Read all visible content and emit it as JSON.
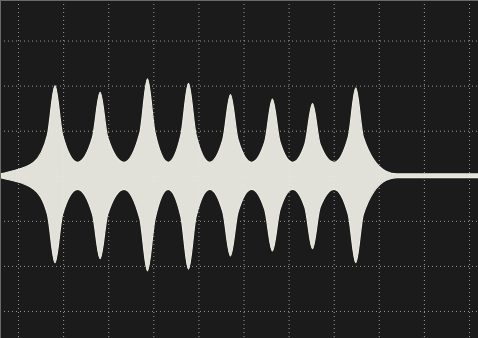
{
  "chart_data": {
    "type": "area",
    "x": [
      -0.4,
      -0.15,
      0.35,
      0.65,
      0.82,
      0.99,
      1.32,
      1.65,
      1.82,
      1.99,
      2.35,
      2.7,
      2.87,
      3.04,
      3.33,
      3.61,
      3.78,
      3.95,
      4.25,
      4.54,
      4.71,
      4.88,
      5.18,
      5.47,
      5.64,
      5.81,
      6.09,
      6.36,
      6.53,
      6.7,
      7.01,
      7.32,
      7.49,
      7.66,
      8.16,
      8.4,
      10.2
    ],
    "values": [
      0.04,
      0.1,
      0.3,
      0.9,
      2.0,
      0.9,
      0.3,
      0.85,
      1.85,
      0.85,
      0.3,
      0.95,
      2.15,
      0.95,
      0.3,
      0.9,
      2.05,
      0.9,
      0.3,
      0.8,
      1.8,
      0.8,
      0.3,
      0.75,
      1.7,
      0.75,
      0.3,
      0.7,
      1.6,
      0.7,
      0.3,
      0.85,
      1.95,
      0.85,
      0.1,
      0.04,
      0.04
    ],
    "lower": [
      -0.04,
      -0.1,
      -0.3,
      -0.85,
      -1.93,
      -0.85,
      -0.3,
      -0.85,
      -1.84,
      -0.85,
      -0.3,
      -0.95,
      -2.11,
      -0.95,
      -0.3,
      -0.9,
      -2.07,
      -0.9,
      -0.3,
      -0.8,
      -1.78,
      -0.8,
      -0.3,
      -0.75,
      -1.67,
      -0.75,
      -0.3,
      -0.7,
      -1.62,
      -0.7,
      -0.3,
      -0.85,
      -1.93,
      -0.85,
      -0.1,
      -0.04,
      -0.04
    ],
    "color": "#ecebe4",
    "xlim": [
      -0.4,
      10.2
    ],
    "ylim": [
      -3.6,
      3.9
    ],
    "xticks": [
      0,
      1,
      2,
      3,
      4,
      5,
      6,
      7,
      8,
      9,
      10
    ],
    "yticks": [
      -3,
      -2,
      -1,
      0,
      1,
      2,
      3
    ],
    "grid": true,
    "tick_labels": false
  }
}
